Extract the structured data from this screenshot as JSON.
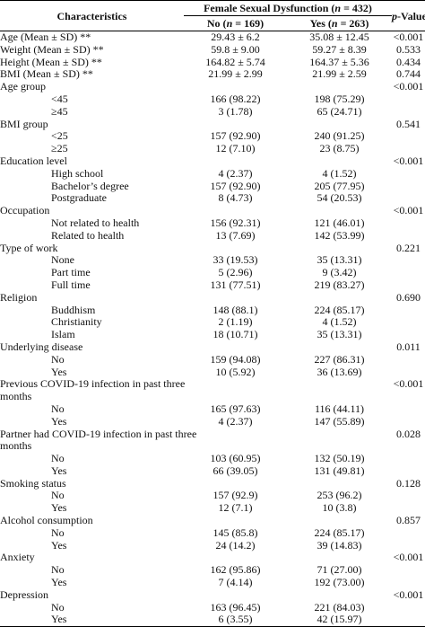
{
  "header": {
    "characteristics": "Characteristics",
    "group": [
      "Female Sexual Dysfunction (",
      "n",
      " = 432)"
    ],
    "no": [
      "No (",
      "n",
      " = 169)"
    ],
    "yes": [
      "Yes (",
      "n",
      " = 263)"
    ],
    "p_value": [
      "p",
      "-Value *"
    ]
  },
  "rows": [
    {
      "label": "Age (Mean ± SD) **",
      "no": "29.43 ± 6.2",
      "yes": "35.08 ± 12.45",
      "p": "<0.001"
    },
    {
      "label": "Weight (Mean ± SD) **",
      "no": "59.8 ± 9.00",
      "yes": "59.27 ± 8.39",
      "p": "0.533"
    },
    {
      "label": "Height (Mean ± SD) **",
      "no": "164.82 ± 5.74",
      "yes": "164.37 ± 5.36",
      "p": "0.434"
    },
    {
      "label": "BMI (Mean ± SD) **",
      "no": "21.99 ± 2.99",
      "yes": "21.99 ± 2.59",
      "p": "0.744"
    },
    {
      "label": "Age group",
      "p": "<0.001",
      "items": [
        {
          "label": "<45",
          "no": "166 (98.22)",
          "yes": "198 (75.29)"
        },
        {
          "label": "≥45",
          "no": "3 (1.78)",
          "yes": "65 (24.71)"
        }
      ]
    },
    {
      "label": "BMI group",
      "p": "0.541",
      "items": [
        {
          "label": "<25",
          "no": "157 (92.90)",
          "yes": "240 (91.25)"
        },
        {
          "label": "≥25",
          "no": "12 (7.10)",
          "yes": "23 (8.75)"
        }
      ]
    },
    {
      "label": "Education level",
      "p": "<0.001",
      "items": [
        {
          "label": "High school",
          "no": "4 (2.37)",
          "yes": "4 (1.52)"
        },
        {
          "label": "Bachelor’s degree",
          "no": "157 (92.90)",
          "yes": "205 (77.95)"
        },
        {
          "label": "Postgraduate",
          "no": "8 (4.73)",
          "yes": "54 (20.53)"
        }
      ]
    },
    {
      "label": "Occupation",
      "p": "<0.001",
      "items": [
        {
          "label": "Not related to health",
          "no": "156 (92.31)",
          "yes": "121 (46.01)"
        },
        {
          "label": "Related to health",
          "no": "13 (7.69)",
          "yes": "142 (53.99)"
        }
      ]
    },
    {
      "label": "Type of work",
      "p": "0.221",
      "items": [
        {
          "label": "None",
          "no": "33 (19.53)",
          "yes": "35 (13.31)"
        },
        {
          "label": "Part time",
          "no": "5 (2.96)",
          "yes": "9 (3.42)"
        },
        {
          "label": "Full time",
          "no": "131 (77.51)",
          "yes": "219 (83.27)"
        }
      ]
    },
    {
      "label": "Religion",
      "p": "0.690",
      "items": [
        {
          "label": "Buddhism",
          "no": "148 (88.1)",
          "yes": "224 (85.17)"
        },
        {
          "label": "Christianity",
          "no": "2 (1.19)",
          "yes": "4 (1.52)"
        },
        {
          "label": "Islam",
          "no": "18 (10.71)",
          "yes": "35 (13.31)"
        }
      ]
    },
    {
      "label": "Underlying disease",
      "p": "0.011",
      "items": [
        {
          "label": "No",
          "no": "159 (94.08)",
          "yes": "227 (86.31)"
        },
        {
          "label": "Yes",
          "no": "10 (5.92)",
          "yes": "36 (13.69)"
        }
      ]
    },
    {
      "label": "Previous COVID-19 infection in past three months",
      "p": "<0.001",
      "items": [
        {
          "label": "No",
          "no": "165 (97.63)",
          "yes": "116 (44.11)"
        },
        {
          "label": "Yes",
          "no": "4 (2.37)",
          "yes": "147 (55.89)"
        }
      ]
    },
    {
      "label": "Partner had COVID-19 infection in past three months",
      "p": "0.028",
      "items": [
        {
          "label": "No",
          "no": "103 (60.95)",
          "yes": "132 (50.19)"
        },
        {
          "label": "Yes",
          "no": "66 (39.05)",
          "yes": "131 (49.81)"
        }
      ]
    },
    {
      "label": "Smoking status",
      "p": "0.128",
      "items": [
        {
          "label": "No",
          "no": "157 (92.9)",
          "yes": "253 (96.2)"
        },
        {
          "label": "Yes",
          "no": "12 (7.1)",
          "yes": "10 (3.8)"
        }
      ]
    },
    {
      "label": "Alcohol consumption",
      "p": "0.857",
      "items": [
        {
          "label": "No",
          "no": "145 (85.8)",
          "yes": "224 (85.17)"
        },
        {
          "label": "Yes",
          "no": "24 (14.2)",
          "yes": "39 (14.83)"
        }
      ]
    },
    {
      "label": "Anxiety",
      "p": "<0.001",
      "items": [
        {
          "label": "No",
          "no": "162 (95.86)",
          "yes": "71 (27.00)"
        },
        {
          "label": "Yes",
          "no": "7 (4.14)",
          "yes": "192 (73.00)"
        }
      ]
    },
    {
      "label": "Depression",
      "p": "<0.001",
      "items": [
        {
          "label": "No",
          "no": "163 (96.45)",
          "yes": "221 (84.03)"
        },
        {
          "label": "Yes",
          "no": "6 (3.55)",
          "yes": "42 (15.97)"
        }
      ]
    }
  ]
}
